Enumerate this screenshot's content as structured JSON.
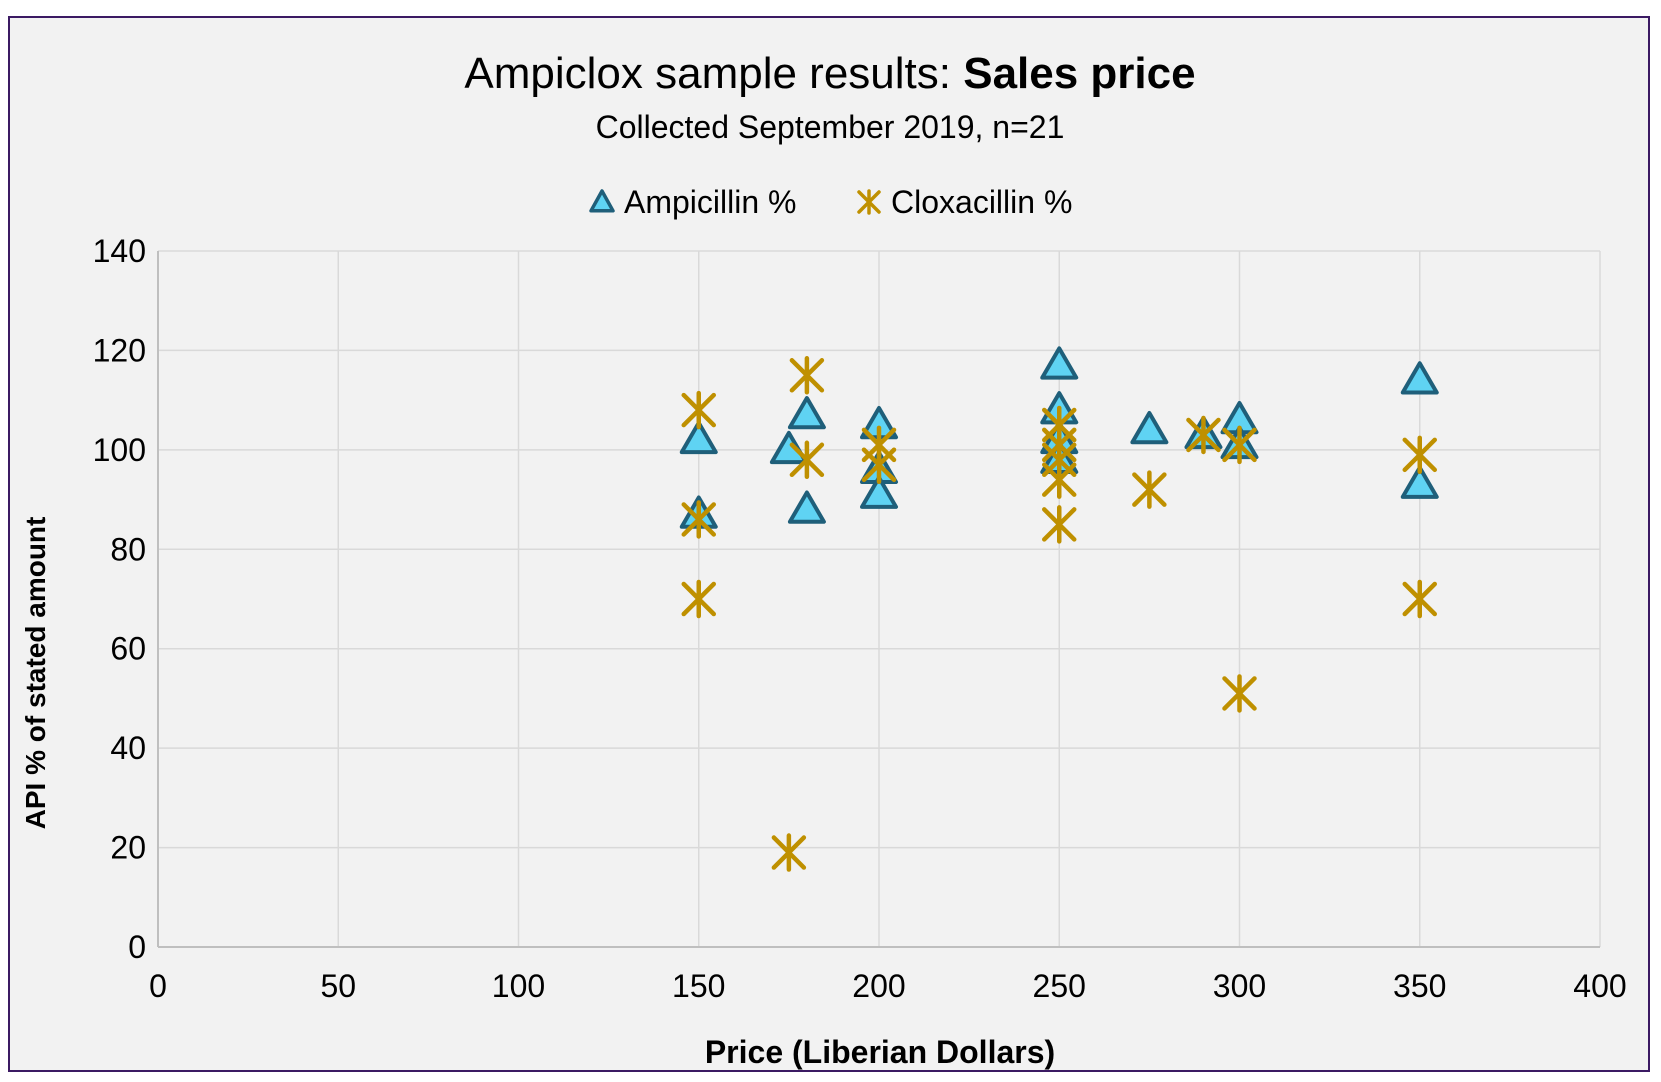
{
  "chart_data": {
    "type": "scatter",
    "title": {
      "prefix": "Ampiclox sample results: ",
      "emphasis": "Sales price"
    },
    "subtitle": "Collected September 2019, n=21",
    "xlabel": "Price (Liberian Dollars)",
    "ylabel": "API % of stated amount",
    "xlim": [
      0,
      400
    ],
    "ylim": [
      0,
      140
    ],
    "xticks": [
      "0",
      "50",
      "100",
      "150",
      "200",
      "250",
      "300",
      "350",
      "400"
    ],
    "yticks": [
      "0",
      "20",
      "40",
      "60",
      "80",
      "100",
      "120",
      "140"
    ],
    "grid": true,
    "legend_position": "top-center",
    "series": [
      {
        "name": "Ampicillin %",
        "marker": "triangle",
        "color": "#5fd3f3",
        "edge_color": "#1f5f7a",
        "points": [
          [
            150,
            102
          ],
          [
            150,
            87
          ],
          [
            175,
            100
          ],
          [
            180,
            107
          ],
          [
            180,
            88
          ],
          [
            200,
            105
          ],
          [
            200,
            96
          ],
          [
            200,
            91
          ],
          [
            250,
            117
          ],
          [
            250,
            108
          ],
          [
            250,
            102
          ],
          [
            250,
            98
          ],
          [
            275,
            104
          ],
          [
            290,
            103
          ],
          [
            300,
            106
          ],
          [
            300,
            101
          ],
          [
            350,
            114
          ],
          [
            350,
            93
          ]
        ]
      },
      {
        "name": "Cloxacillin %",
        "marker": "asterisk",
        "color": "#bf9000",
        "points": [
          [
            150,
            108
          ],
          [
            150,
            86
          ],
          [
            150,
            70
          ],
          [
            175,
            19
          ],
          [
            180,
            115
          ],
          [
            180,
            98
          ],
          [
            200,
            101
          ],
          [
            200,
            97
          ],
          [
            250,
            105
          ],
          [
            250,
            101
          ],
          [
            250,
            98
          ],
          [
            250,
            94
          ],
          [
            250,
            85
          ],
          [
            275,
            92
          ],
          [
            290,
            103
          ],
          [
            300,
            101
          ],
          [
            300,
            51
          ],
          [
            350,
            99
          ],
          [
            350,
            70
          ]
        ]
      }
    ]
  }
}
